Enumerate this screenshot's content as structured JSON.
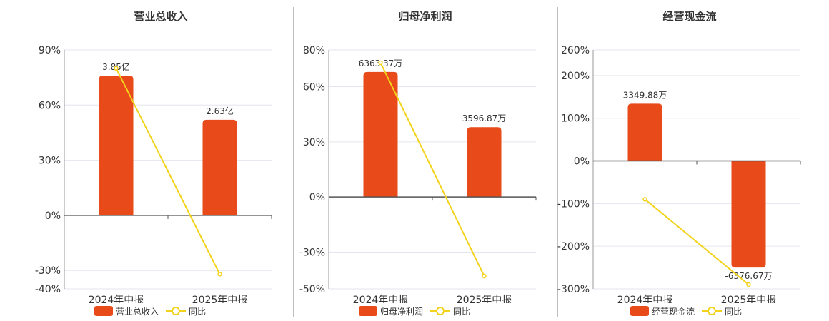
{
  "colors": {
    "bar": "#e84a1a",
    "line": "#f2d21a",
    "grid": "#e3e6ee",
    "axis": "#555555",
    "text": "#333333"
  },
  "legend": {
    "line_label": "同比"
  },
  "chart_data": [
    {
      "type": "bar",
      "title": "营业总收入",
      "categories": [
        "2024年中报",
        "2025年中报"
      ],
      "series": [
        {
          "name": "营业总收入",
          "kind": "bar",
          "values": [
            76,
            52
          ],
          "labels": [
            "3.85亿",
            "2.63亿"
          ]
        },
        {
          "name": "同比",
          "kind": "line",
          "values": [
            80,
            -32
          ]
        }
      ],
      "yticks": [
        90,
        60,
        30,
        0,
        -30,
        -40
      ],
      "ytick_labels": [
        "90%",
        "60%",
        "30%",
        "0%",
        "-30%",
        "-40%"
      ],
      "ylim": [
        -40,
        90
      ],
      "grid": true
    },
    {
      "type": "bar",
      "title": "归母净利润",
      "categories": [
        "2024年中报",
        "2025年中报"
      ],
      "series": [
        {
          "name": "归母净利润",
          "kind": "bar",
          "values": [
            68,
            38
          ],
          "labels": [
            "6363.37万",
            "3596.87万"
          ]
        },
        {
          "name": "同比",
          "kind": "line",
          "values": [
            73,
            -43
          ]
        }
      ],
      "yticks": [
        80,
        60,
        30,
        0,
        -30,
        -50
      ],
      "ytick_labels": [
        "80%",
        "60%",
        "30%",
        "0%",
        "-30%",
        "-50%"
      ],
      "ylim": [
        -50,
        80
      ],
      "grid": true
    },
    {
      "type": "bar",
      "title": "经营现金流",
      "categories": [
        "2024年中报",
        "2025年中报"
      ],
      "series": [
        {
          "name": "经营现金流",
          "kind": "bar",
          "values": [
            134,
            -250
          ],
          "labels": [
            "3349.88万",
            "-6376.67万"
          ]
        },
        {
          "name": "同比",
          "kind": "line",
          "values": [
            -90,
            -290
          ]
        }
      ],
      "yticks": [
        260,
        200,
        100,
        0,
        -100,
        -200,
        -300
      ],
      "ytick_labels": [
        "260%",
        "200%",
        "100%",
        "0%",
        "-100%",
        "-200%",
        "-300%"
      ],
      "ylim": [
        -300,
        260
      ],
      "grid": true
    }
  ]
}
